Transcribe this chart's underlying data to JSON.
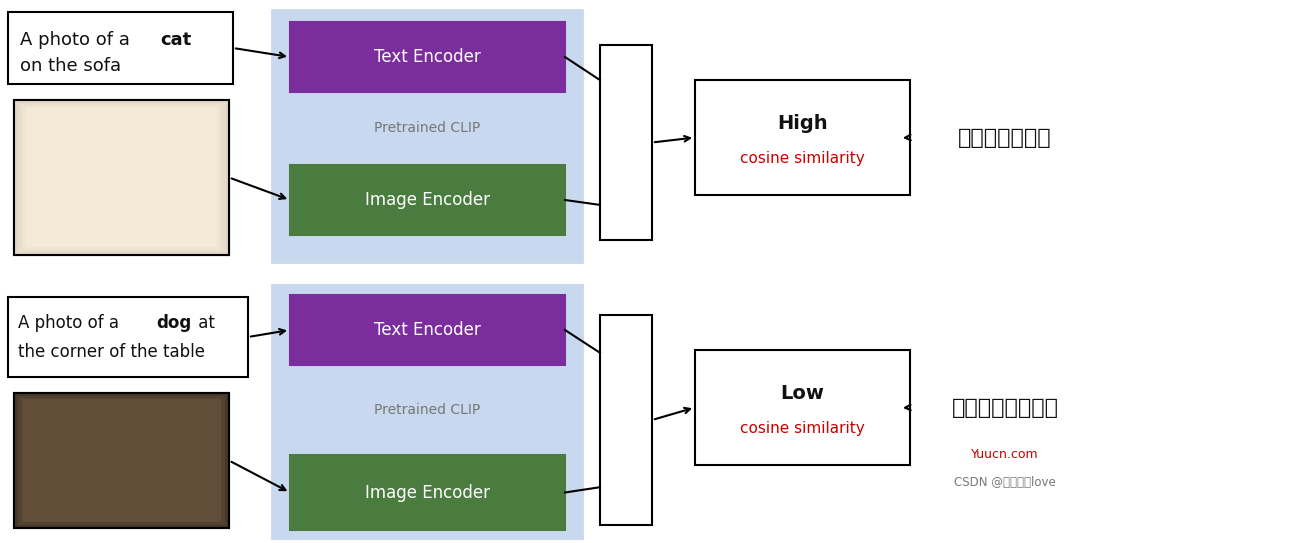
{
  "fig_width": 12.98,
  "fig_height": 5.43,
  "bg_color": "#ffffff",
  "purple_color": "#7B2D9E",
  "green_color": "#4A7C3F",
  "light_blue_color": "#C8D8EE",
  "text_color_black": "#111111",
  "text_color_red": "#CC0000",
  "text_color_gray": "#777777",
  "row1": {
    "text_line1_normal": "A photo of a ",
    "text_line1_bold": "cat",
    "text_line2": "on the sofa",
    "encoder_label": "Text Encoder",
    "image_encoder_label": "Image Encoder",
    "pretrained_label": "Pretrained CLIP",
    "similarity_high": "High",
    "similarity_label": "cosine similarity",
    "result_label": "文本与图像匹配"
  },
  "row2": {
    "text_line1_normal": "A photo of a ",
    "text_line1_bold": "dog",
    "text_line1_rest": " at",
    "text_line2": "the corner of the table",
    "encoder_label": "Text Encoder",
    "image_encoder_label": "Image Encoder",
    "pretrained_label": "Pretrained CLIP",
    "similarity_low": "Low",
    "similarity_label": "cosine similarity",
    "result_label": "文本与图像不匹配"
  },
  "watermark1": "Yuucn.com",
  "watermark2": "CSDN @丹心向阳love"
}
